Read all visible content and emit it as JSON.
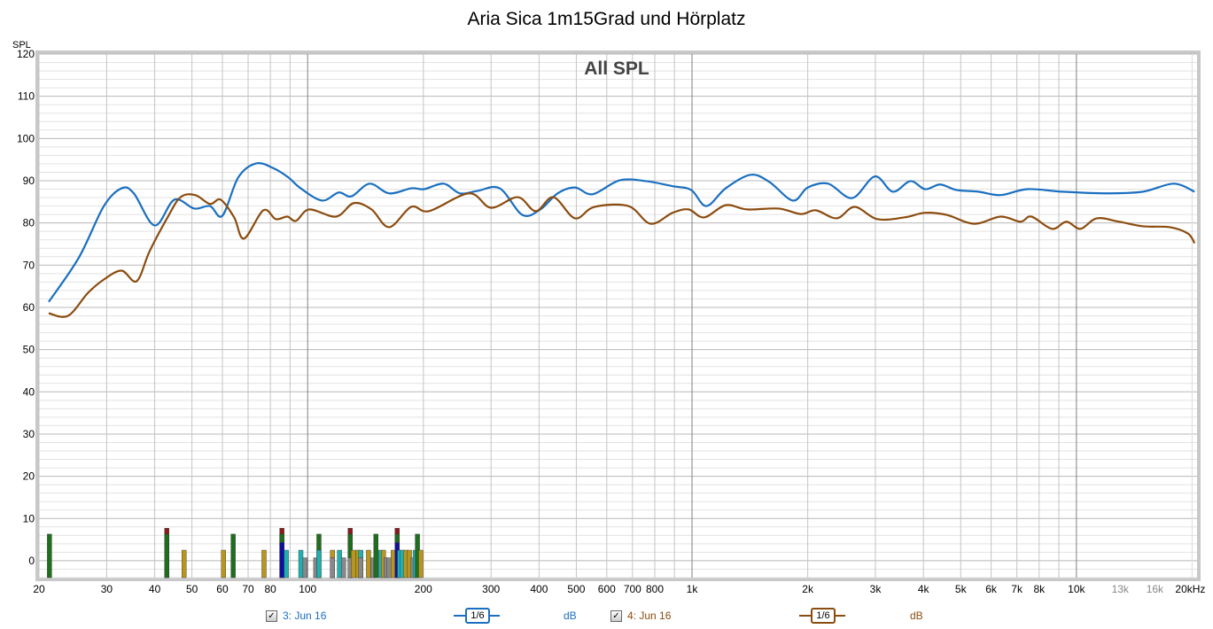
{
  "chart_data": {
    "type": "line",
    "title": "Aria Sica 1m15Grad und Hörplatz",
    "annotation": "All SPL",
    "ylabel": "SPL",
    "xlabel": "Hz",
    "xscale": "log",
    "xlim": [
      20,
      20600
    ],
    "ylim": [
      -4,
      120
    ],
    "grid": true,
    "yticks": [
      0,
      10,
      20,
      30,
      40,
      50,
      60,
      70,
      80,
      90,
      100,
      110,
      120
    ],
    "xticks": [
      {
        "v": 20,
        "l": "20"
      },
      {
        "v": 30,
        "l": "30"
      },
      {
        "v": 40,
        "l": "40"
      },
      {
        "v": 50,
        "l": "50"
      },
      {
        "v": 60,
        "l": "60"
      },
      {
        "v": 70,
        "l": "70"
      },
      {
        "v": 80,
        "l": "80"
      },
      {
        "v": 100,
        "l": "100"
      },
      {
        "v": 200,
        "l": "200"
      },
      {
        "v": 300,
        "l": "300"
      },
      {
        "v": 400,
        "l": "400"
      },
      {
        "v": 500,
        "l": "500"
      },
      {
        "v": 600,
        "l": "600"
      },
      {
        "v": 700,
        "l": "700"
      },
      {
        "v": 800,
        "l": "800"
      },
      {
        "v": 1000,
        "l": "1k"
      },
      {
        "v": 2000,
        "l": "2k"
      },
      {
        "v": 3000,
        "l": "3k"
      },
      {
        "v": 4000,
        "l": "4k"
      },
      {
        "v": 5000,
        "l": "5k"
      },
      {
        "v": 6000,
        "l": "6k"
      },
      {
        "v": 7000,
        "l": "7k"
      },
      {
        "v": 8000,
        "l": "8k"
      },
      {
        "v": 10000,
        "l": "10k"
      },
      {
        "v": 13000,
        "l": "13k"
      },
      {
        "v": 16000,
        "l": "16k"
      },
      {
        "v": 20000,
        "l": "20kHz"
      }
    ],
    "series": [
      {
        "name": "3: Jun 16",
        "color": "#1a6fc0",
        "smoothing": "1/6",
        "unit": "dB",
        "points": [
          [
            21.2,
            61.3
          ],
          [
            25.4,
            71.8
          ],
          [
            29.5,
            84
          ],
          [
            32.8,
            88.2
          ],
          [
            35.3,
            87
          ],
          [
            40,
            79.4
          ],
          [
            45,
            85.5
          ],
          [
            50.7,
            83.4
          ],
          [
            55.7,
            84
          ],
          [
            60,
            81.7
          ],
          [
            66,
            90.8
          ],
          [
            73.5,
            94.1
          ],
          [
            81.7,
            92.9
          ],
          [
            89,
            90.8
          ],
          [
            95.9,
            88.2
          ],
          [
            109,
            85.3
          ],
          [
            120.4,
            87.2
          ],
          [
            130,
            86.3
          ],
          [
            145,
            89.3
          ],
          [
            163,
            87
          ],
          [
            186,
            88.2
          ],
          [
            201,
            88
          ],
          [
            226,
            89.3
          ],
          [
            249,
            87
          ],
          [
            277,
            87.6
          ],
          [
            316,
            88.2
          ],
          [
            362,
            81.9
          ],
          [
            403,
            83.2
          ],
          [
            447,
            87
          ],
          [
            496,
            88.4
          ],
          [
            551,
            86.8
          ],
          [
            648,
            90.1
          ],
          [
            759,
            89.9
          ],
          [
            890,
            88.7
          ],
          [
            995,
            87.8
          ],
          [
            1090,
            84
          ],
          [
            1223,
            88.2
          ],
          [
            1420,
            91.4
          ],
          [
            1590,
            89.7
          ],
          [
            1830,
            85.3
          ],
          [
            2000,
            88.4
          ],
          [
            2260,
            89.3
          ],
          [
            2610,
            85.9
          ],
          [
            2990,
            91
          ],
          [
            3330,
            87.4
          ],
          [
            3700,
            89.9
          ],
          [
            4040,
            88
          ],
          [
            4420,
            89.1
          ],
          [
            4870,
            87.8
          ],
          [
            5560,
            87.4
          ],
          [
            6350,
            86.6
          ],
          [
            7460,
            88
          ],
          [
            9200,
            87.4
          ],
          [
            12000,
            87
          ],
          [
            14900,
            87.4
          ],
          [
            17900,
            89.3
          ],
          [
            20300,
            87.4
          ]
        ]
      },
      {
        "name": "4: Jun 16",
        "color": "#8b4c0f",
        "smoothing": "1/6",
        "unit": "dB",
        "points": [
          [
            21.2,
            58.6
          ],
          [
            23.8,
            58
          ],
          [
            26.8,
            63.4
          ],
          [
            29.5,
            66.6
          ],
          [
            32.8,
            68.7
          ],
          [
            35.9,
            66.2
          ],
          [
            38.8,
            73.3
          ],
          [
            43.2,
            81.3
          ],
          [
            46.7,
            86.1
          ],
          [
            51,
            86.6
          ],
          [
            55.7,
            84.5
          ],
          [
            59.4,
            85.5
          ],
          [
            64.4,
            81.3
          ],
          [
            68.3,
            76.3
          ],
          [
            76.7,
            83
          ],
          [
            82.6,
            80.9
          ],
          [
            88.5,
            81.5
          ],
          [
            93.3,
            80.5
          ],
          [
            101,
            83.2
          ],
          [
            118.5,
            81.5
          ],
          [
            131.8,
            84.7
          ],
          [
            146.6,
            83.2
          ],
          [
            163,
            79
          ],
          [
            186,
            83.8
          ],
          [
            207,
            82.8
          ],
          [
            263,
            87
          ],
          [
            300,
            83.6
          ],
          [
            352,
            86.1
          ],
          [
            392,
            82.8
          ],
          [
            436,
            86.1
          ],
          [
            496,
            81.1
          ],
          [
            557,
            83.8
          ],
          [
            683,
            84
          ],
          [
            780,
            79.8
          ],
          [
            890,
            82.4
          ],
          [
            980,
            83.2
          ],
          [
            1075,
            81.3
          ],
          [
            1223,
            84.2
          ],
          [
            1390,
            83.2
          ],
          [
            1680,
            83.4
          ],
          [
            1920,
            82.1
          ],
          [
            2100,
            83
          ],
          [
            2380,
            81.1
          ],
          [
            2650,
            83.8
          ],
          [
            3030,
            80.9
          ],
          [
            3560,
            81.3
          ],
          [
            4040,
            82.4
          ],
          [
            4600,
            81.9
          ],
          [
            5420,
            79.8
          ],
          [
            6350,
            81.5
          ],
          [
            7150,
            80.3
          ],
          [
            7640,
            81.5
          ],
          [
            8640,
            78.6
          ],
          [
            9420,
            80.3
          ],
          [
            10240,
            78.6
          ],
          [
            11300,
            81.1
          ],
          [
            12900,
            80.3
          ],
          [
            14900,
            79.2
          ],
          [
            17500,
            79
          ],
          [
            19500,
            77.5
          ],
          [
            20300,
            75.2
          ]
        ]
      }
    ],
    "bars": [
      {
        "f": 21.3,
        "layers": [
          [
            6.3,
            "#1e6e1e"
          ]
        ]
      },
      {
        "f": 43,
        "layers": [
          [
            7.7,
            "#8b1a1a"
          ],
          [
            6.3,
            "#1e6e1e"
          ]
        ]
      },
      {
        "f": 47.7,
        "layers": [
          [
            2.5,
            "#b8961e"
          ]
        ]
      },
      {
        "f": 60.4,
        "layers": [
          [
            2.5,
            "#b8961e"
          ]
        ]
      },
      {
        "f": 64,
        "layers": [
          [
            6.3,
            "#1e6e1e"
          ]
        ]
      },
      {
        "f": 77,
        "layers": [
          [
            2.5,
            "#b8961e"
          ]
        ]
      },
      {
        "f": 85.7,
        "layers": [
          [
            7.7,
            "#8b1a1a"
          ],
          [
            6.3,
            "#1e6e1e"
          ],
          [
            4.3,
            "#1010a0"
          ]
        ]
      },
      {
        "f": 88,
        "layers": [
          [
            2.5,
            "#20b0b0"
          ]
        ]
      },
      {
        "f": 96,
        "layers": [
          [
            2.5,
            "#20b0b0"
          ]
        ]
      },
      {
        "f": 98.5,
        "layers": [
          [
            0.7,
            "#888888"
          ]
        ]
      },
      {
        "f": 105,
        "layers": [
          [
            0.7,
            "#888888"
          ]
        ]
      },
      {
        "f": 107,
        "layers": [
          [
            6.3,
            "#1e6e1e"
          ],
          [
            2.5,
            "#20b0b0"
          ]
        ]
      },
      {
        "f": 116,
        "layers": [
          [
            2.5,
            "#b8961e"
          ],
          [
            0.7,
            "#888888"
          ]
        ]
      },
      {
        "f": 121,
        "layers": [
          [
            2.5,
            "#20b0b0"
          ]
        ]
      },
      {
        "f": 124,
        "layers": [
          [
            0.7,
            "#888888"
          ]
        ]
      },
      {
        "f": 129,
        "layers": [
          [
            7.7,
            "#8b1a1a"
          ],
          [
            6.3,
            "#1e6e1e"
          ],
          [
            0.7,
            "#888888"
          ]
        ]
      },
      {
        "f": 131.5,
        "layers": [
          [
            2.5,
            "#b8961e"
          ]
        ]
      },
      {
        "f": 135,
        "layers": [
          [
            2.5,
            "#b8961e"
          ]
        ]
      },
      {
        "f": 137.5,
        "layers": [
          [
            2.5,
            "#20b0b0"
          ],
          [
            0.7,
            "#888888"
          ]
        ]
      },
      {
        "f": 144,
        "layers": [
          [
            2.5,
            "#b8961e"
          ]
        ]
      },
      {
        "f": 148,
        "layers": [
          [
            0.7,
            "#888888"
          ]
        ]
      },
      {
        "f": 150.5,
        "layers": [
          [
            6.3,
            "#1e6e1e"
          ]
        ]
      },
      {
        "f": 155,
        "layers": [
          [
            2.5,
            "#20b0b0"
          ]
        ]
      },
      {
        "f": 157.5,
        "layers": [
          [
            2.5,
            "#b8961e"
          ]
        ]
      },
      {
        "f": 160,
        "layers": [
          [
            0.7,
            "#888888"
          ]
        ]
      },
      {
        "f": 163,
        "layers": [
          [
            0.7,
            "#888888"
          ]
        ]
      },
      {
        "f": 167,
        "layers": [
          [
            2.5,
            "#b8961e"
          ]
        ]
      },
      {
        "f": 171,
        "layers": [
          [
            7.7,
            "#8b1a1a"
          ],
          [
            6.3,
            "#1e6e1e"
          ],
          [
            4.3,
            "#1010a0"
          ]
        ]
      },
      {
        "f": 173.5,
        "layers": [
          [
            2.5,
            "#20b0b0"
          ]
        ]
      },
      {
        "f": 176.5,
        "layers": [
          [
            2.5,
            "#20b0b0"
          ]
        ]
      },
      {
        "f": 180,
        "layers": [
          [
            2.5,
            "#b8961e"
          ]
        ]
      },
      {
        "f": 184,
        "layers": [
          [
            2.5,
            "#b8961e"
          ]
        ]
      },
      {
        "f": 188,
        "layers": [
          [
            0.7,
            "#888888"
          ]
        ]
      },
      {
        "f": 190.5,
        "layers": [
          [
            2.5,
            "#20b0b0"
          ]
        ]
      },
      {
        "f": 193,
        "layers": [
          [
            6.3,
            "#1e6e1e"
          ]
        ]
      },
      {
        "f": 197,
        "layers": [
          [
            2.5,
            "#b8961e"
          ]
        ]
      }
    ]
  },
  "legend": [
    {
      "checked": "✓",
      "name": "3: Jun 16",
      "smoothing": "1/6",
      "unit": "dB"
    },
    {
      "checked": "✓",
      "name": "4: Jun 16",
      "smoothing": "1/6",
      "unit": "dB"
    }
  ]
}
